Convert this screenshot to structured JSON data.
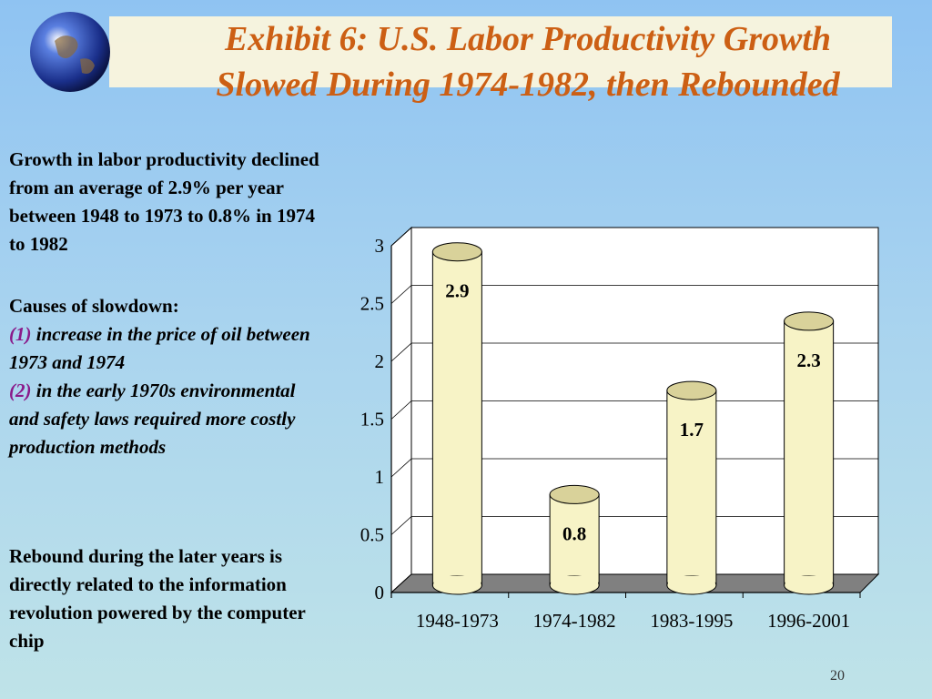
{
  "slide": {
    "title_line1": "Exhibit 6: U.S. Labor Productivity Growth",
    "title_line2": "Slowed During 1974-1982, then Rebounded",
    "paragraph1": "Growth in labor productivity declined from an average of 2.9% per year between 1948 to 1973 to 0.8% in 1974 to 1982",
    "causes_heading": "Causes of slowdown:",
    "cause1_number": "(1)",
    "cause1_text": "increase in the price of oil between 1973 and 1974",
    "cause2_number": "(2)",
    "cause2_text": "in the early 1970s environmental and safety laws required more costly production methods",
    "paragraph3": "Rebound during the later years is directly related to the information revolution powered by the computer chip",
    "page_number": "20"
  },
  "colors": {
    "title": "#cc5f14",
    "cause_number": "#8a1a8a",
    "bar_fill": "#f7f3c6",
    "bar_top": "#d9d29a",
    "floor": "#808080"
  },
  "chart_data": {
    "type": "bar",
    "categories": [
      "1948-1973",
      "1974-1982",
      "1983-1995",
      "1996-2001"
    ],
    "values": [
      2.9,
      0.8,
      1.7,
      2.3
    ],
    "data_labels": [
      "2.9",
      "0.8",
      "1.7",
      "2.3"
    ],
    "yticks": [
      "0",
      "0.5",
      "1",
      "1.5",
      "2",
      "2.5",
      "3"
    ],
    "ylim": [
      0,
      3
    ],
    "grid": true,
    "bar_shape": "cylinder-3d"
  }
}
